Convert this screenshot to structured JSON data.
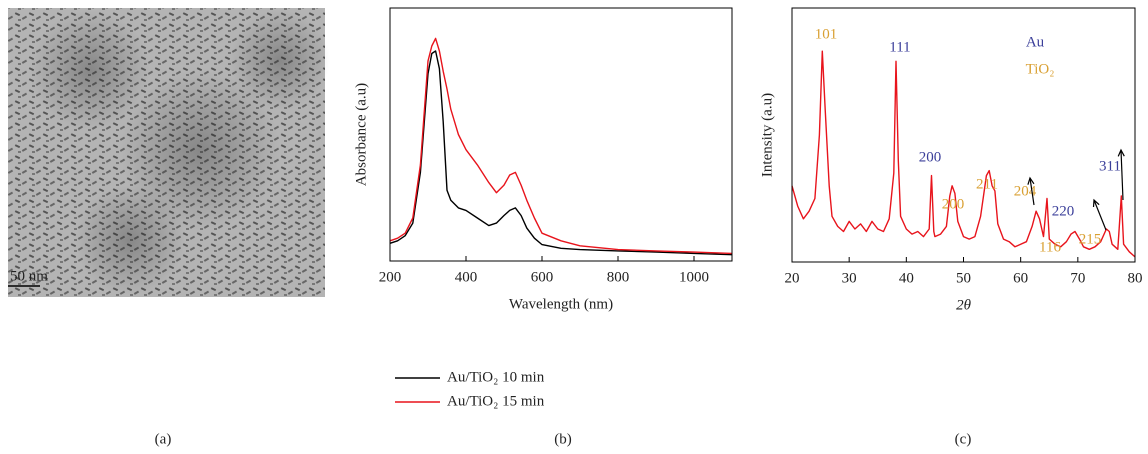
{
  "image": {
    "scale_bar": "50 nm",
    "caption": "(a)"
  },
  "chart_data": [
    {
      "type": "line",
      "caption": "(b)",
      "xlabel": "Wavelength (nm)",
      "ylabel": "Absorbance (a.u)",
      "xlim": [
        200,
        1100
      ],
      "xticks": [
        200,
        400,
        600,
        800,
        1000
      ],
      "ylim": [
        0,
        1
      ],
      "x": [
        200,
        220,
        240,
        260,
        280,
        300,
        310,
        320,
        330,
        340,
        350,
        360,
        380,
        400,
        430,
        460,
        480,
        500,
        515,
        530,
        545,
        560,
        580,
        600,
        650,
        700,
        800,
        900,
        1000,
        1100
      ],
      "series": [
        {
          "name": "Au/TiO₂ 10 min",
          "color": "#000000",
          "values": [
            0.07,
            0.08,
            0.1,
            0.15,
            0.35,
            0.74,
            0.82,
            0.83,
            0.76,
            0.55,
            0.28,
            0.24,
            0.21,
            0.2,
            0.17,
            0.14,
            0.15,
            0.18,
            0.2,
            0.21,
            0.18,
            0.13,
            0.09,
            0.065,
            0.05,
            0.045,
            0.04,
            0.035,
            0.03,
            0.025
          ]
        },
        {
          "name": "Au/TiO₂ 15 min",
          "color": "#e8141c",
          "values": [
            0.08,
            0.09,
            0.11,
            0.17,
            0.38,
            0.79,
            0.85,
            0.88,
            0.83,
            0.75,
            0.68,
            0.6,
            0.5,
            0.44,
            0.38,
            0.31,
            0.27,
            0.3,
            0.34,
            0.35,
            0.3,
            0.24,
            0.17,
            0.11,
            0.08,
            0.06,
            0.045,
            0.04,
            0.035,
            0.03
          ]
        }
      ]
    },
    {
      "type": "line",
      "caption": "(c)",
      "xlabel": "2θ",
      "ylabel": "Intensity (a.u)",
      "xlim": [
        20,
        80
      ],
      "xticks": [
        20,
        30,
        40,
        50,
        60,
        70,
        80
      ],
      "ylim": [
        0,
        1
      ],
      "x": [
        20,
        21,
        22,
        23,
        24,
        24.8,
        25.3,
        25.8,
        26.5,
        27,
        28,
        29,
        30,
        31,
        32,
        33,
        34,
        35,
        36,
        37,
        37.8,
        38.2,
        38.6,
        39,
        40,
        41,
        42,
        43,
        44,
        44.4,
        44.8,
        45,
        46,
        47,
        47.6,
        48,
        48.5,
        49,
        50,
        51,
        52,
        53,
        54,
        54.5,
        55,
        55.5,
        56,
        57,
        58,
        59,
        60,
        61,
        62,
        62.7,
        63.3,
        64,
        64.6,
        65,
        66,
        67,
        68,
        68.8,
        69.5,
        70.3,
        71,
        72,
        73,
        74,
        75,
        75.5,
        76,
        77,
        77.6,
        78,
        79,
        80
      ],
      "series": [
        {
          "name": null,
          "color": "#e8141c",
          "values": [
            0.3,
            0.22,
            0.17,
            0.2,
            0.25,
            0.5,
            0.83,
            0.6,
            0.3,
            0.18,
            0.14,
            0.12,
            0.16,
            0.13,
            0.15,
            0.12,
            0.16,
            0.13,
            0.12,
            0.17,
            0.35,
            0.79,
            0.4,
            0.18,
            0.13,
            0.11,
            0.12,
            0.1,
            0.13,
            0.34,
            0.12,
            0.1,
            0.11,
            0.14,
            0.26,
            0.3,
            0.27,
            0.16,
            0.1,
            0.09,
            0.1,
            0.18,
            0.34,
            0.36,
            0.3,
            0.28,
            0.15,
            0.09,
            0.08,
            0.06,
            0.07,
            0.08,
            0.14,
            0.2,
            0.17,
            0.1,
            0.25,
            0.09,
            0.07,
            0.06,
            0.08,
            0.11,
            0.12,
            0.09,
            0.06,
            0.05,
            0.06,
            0.08,
            0.13,
            0.12,
            0.07,
            0.05,
            0.26,
            0.07,
            0.04,
            0.02
          ]
        }
      ],
      "annotations": [
        {
          "text": "101",
          "color": "#d9a033"
        },
        {
          "text": "111",
          "color": "#3b3f9a"
        },
        {
          "text": "Au",
          "color": "#3b3f9a"
        },
        {
          "text": "TiO₂",
          "color": "#d9a033"
        },
        {
          "text": "200",
          "color": "#3b3f9a"
        },
        {
          "text": "200",
          "color": "#d9a033"
        },
        {
          "text": "211",
          "color": "#d9a033"
        },
        {
          "text": "204",
          "color": "#d9a033"
        },
        {
          "text": "220",
          "color": "#3b3f9a"
        },
        {
          "text": "215",
          "color": "#d9a033"
        },
        {
          "text": "116",
          "color": "#d9a033"
        },
        {
          "text": "311",
          "color": "#3b3f9a"
        }
      ]
    }
  ]
}
